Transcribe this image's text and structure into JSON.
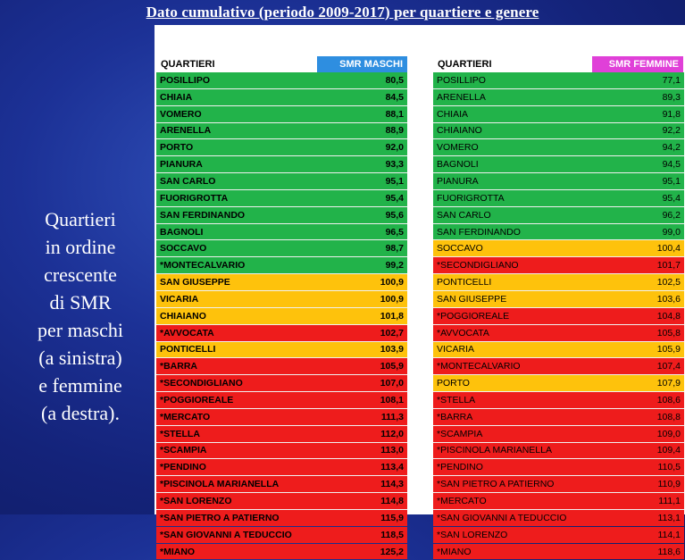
{
  "title": "Dato cumulativo  (periodo 2009-2017) per quartiere  e genere",
  "side_text": [
    "Quartieri",
    "in ordine",
    "crescente",
    "di SMR",
    "per maschi",
    "(a sinistra)",
    "e femmine",
    "(a destra)."
  ],
  "colors": {
    "green": "#22b34a",
    "yellow": "#fec20c",
    "red": "#ee1c1c",
    "header_male": "#2e8ee0",
    "header_female": "#e040d8"
  },
  "left_table": {
    "header_name": "QUARTIERI",
    "header_value": "SMR MASCHI",
    "rows": [
      {
        "name": "POSILLIPO",
        "value": "80,5",
        "color": "green"
      },
      {
        "name": "CHIAIA",
        "value": "84,5",
        "color": "green"
      },
      {
        "name": "VOMERO",
        "value": "88,1",
        "color": "green"
      },
      {
        "name": "ARENELLA",
        "value": "88,9",
        "color": "green"
      },
      {
        "name": "PORTO",
        "value": "92,0",
        "color": "green"
      },
      {
        "name": "PIANURA",
        "value": "93,3",
        "color": "green"
      },
      {
        "name": "SAN CARLO",
        "value": "95,1",
        "color": "green"
      },
      {
        "name": "FUORIGROTTA",
        "value": "95,4",
        "color": "green"
      },
      {
        "name": "SAN FERDINANDO",
        "value": "95,6",
        "color": "green"
      },
      {
        "name": "BAGNOLI",
        "value": "96,5",
        "color": "green"
      },
      {
        "name": "SOCCAVO",
        "value": "98,7",
        "color": "green"
      },
      {
        "name": "*MONTECALVARIO",
        "value": "99,2",
        "color": "green"
      },
      {
        "name": "SAN GIUSEPPE",
        "value": "100,9",
        "color": "yellow"
      },
      {
        "name": "VICARIA",
        "value": "100,9",
        "color": "yellow"
      },
      {
        "name": "CHIAIANO",
        "value": "101,8",
        "color": "yellow"
      },
      {
        "name": "*AVVOCATA",
        "value": "102,7",
        "color": "red"
      },
      {
        "name": "PONTICELLI",
        "value": "103,9",
        "color": "yellow"
      },
      {
        "name": "*BARRA",
        "value": "105,9",
        "color": "red"
      },
      {
        "name": "*SECONDIGLIANO",
        "value": "107,0",
        "color": "red"
      },
      {
        "name": "*POGGIOREALE",
        "value": "108,1",
        "color": "red"
      },
      {
        "name": "*MERCATO",
        "value": "111,3",
        "color": "red"
      },
      {
        "name": "*STELLA",
        "value": "112,0",
        "color": "red"
      },
      {
        "name": "*SCAMPIA",
        "value": "113,0",
        "color": "red"
      },
      {
        "name": "*PENDINO",
        "value": "113,4",
        "color": "red"
      },
      {
        "name": "*PISCINOLA MARIANELLA",
        "value": "114,3",
        "color": "red"
      },
      {
        "name": "*SAN LORENZO",
        "value": "114,8",
        "color": "red"
      },
      {
        "name": "*SAN PIETRO A PATIERNO",
        "value": "115,9",
        "color": "red"
      },
      {
        "name": "*SAN GIOVANNI A TEDUCCIO",
        "value": "118,5",
        "color": "red"
      },
      {
        "name": "*MIANO",
        "value": "125,2",
        "color": "red"
      }
    ]
  },
  "right_table": {
    "header_name": "QUARTIERI",
    "header_value": "SMR FEMMINE",
    "rows": [
      {
        "name": "POSILLIPO",
        "value": "77,1",
        "color": "green"
      },
      {
        "name": "ARENELLA",
        "value": "89,3",
        "color": "green"
      },
      {
        "name": "CHIAIA",
        "value": "91,8",
        "color": "green"
      },
      {
        "name": "CHIAIANO",
        "value": "92,2",
        "color": "green"
      },
      {
        "name": "VOMERO",
        "value": "94,2",
        "color": "green"
      },
      {
        "name": "BAGNOLI",
        "value": "94,5",
        "color": "green"
      },
      {
        "name": "PIANURA",
        "value": "95,1",
        "color": "green"
      },
      {
        "name": "FUORIGROTTA",
        "value": "95,4",
        "color": "green"
      },
      {
        "name": "SAN CARLO",
        "value": "96,2",
        "color": "green"
      },
      {
        "name": "SAN FERDINANDO",
        "value": "99,0",
        "color": "green"
      },
      {
        "name": "SOCCAVO",
        "value": "100,4",
        "color": "yellow"
      },
      {
        "name": "*SECONDIGLIANO",
        "value": "101,7",
        "color": "red"
      },
      {
        "name": "PONTICELLI",
        "value": "102,5",
        "color": "yellow"
      },
      {
        "name": "SAN GIUSEPPE",
        "value": "103,6",
        "color": "yellow"
      },
      {
        "name": "*POGGIOREALE",
        "value": "104,8",
        "color": "red"
      },
      {
        "name": "*AVVOCATA",
        "value": "105,8",
        "color": "red"
      },
      {
        "name": "VICARIA",
        "value": "105,9",
        "color": "yellow"
      },
      {
        "name": "*MONTECALVARIO",
        "value": "107,4",
        "color": "red"
      },
      {
        "name": "PORTO",
        "value": "107,9",
        "color": "yellow"
      },
      {
        "name": "*STELLA",
        "value": "108,6",
        "color": "red"
      },
      {
        "name": "*BARRA",
        "value": "108,8",
        "color": "red"
      },
      {
        "name": "*SCAMPIA",
        "value": "109,0",
        "color": "red"
      },
      {
        "name": "*PISCINOLA MARIANELLA",
        "value": "109,4",
        "color": "red"
      },
      {
        "name": "*PENDINO",
        "value": "110,5",
        "color": "red"
      },
      {
        "name": "*SAN PIETRO A PATIERNO",
        "value": "110,9",
        "color": "red"
      },
      {
        "name": "*MERCATO",
        "value": "111,1",
        "color": "red"
      },
      {
        "name": "*SAN GIOVANNI A TEDUCCIO",
        "value": "113,1",
        "color": "red"
      },
      {
        "name": "*SAN LORENZO",
        "value": "114,1",
        "color": "red"
      },
      {
        "name": "*MIANO",
        "value": "118,6",
        "color": "red"
      }
    ]
  }
}
